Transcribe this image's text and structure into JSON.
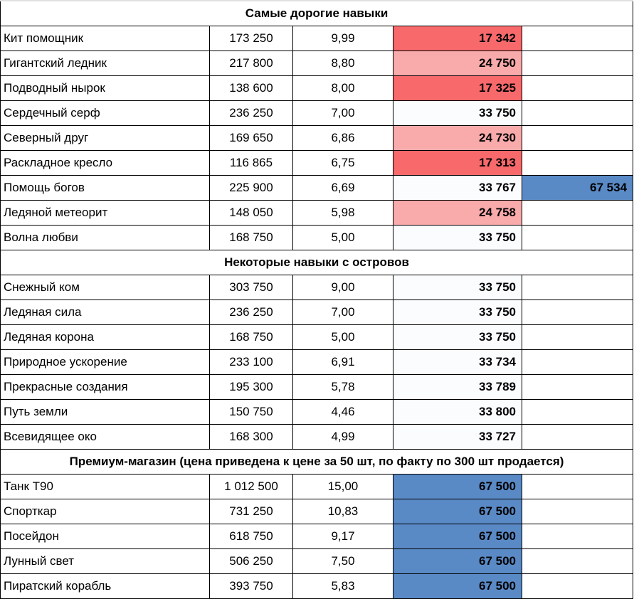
{
  "colors": {
    "low": "#f8696b",
    "mid": "#f9aaab",
    "neutral": "#fbfcfe",
    "high": "#5a8ac6"
  },
  "sections": [
    {
      "title": "Самые дорогие навыки",
      "rows": [
        {
          "name": "Кит помощник",
          "price": "173 250",
          "ratio": "9,99",
          "cost": "17 342",
          "cost_color": "low",
          "extra": ""
        },
        {
          "name": "Гигантский ледник",
          "price": "217 800",
          "ratio": "8,80",
          "cost": "24 750",
          "cost_color": "mid",
          "extra": ""
        },
        {
          "name": "Подводный нырок",
          "price": "138 600",
          "ratio": "8,00",
          "cost": "17 325",
          "cost_color": "low",
          "extra": ""
        },
        {
          "name": "Сердечный серф",
          "price": "236 250",
          "ratio": "7,00",
          "cost": "33 750",
          "cost_color": "neutral",
          "extra": ""
        },
        {
          "name": "Северный друг",
          "price": "169 650",
          "ratio": "6,86",
          "cost": "24 730",
          "cost_color": "mid",
          "extra": ""
        },
        {
          "name": "Раскладное кресло",
          "price": "116 865",
          "ratio": "6,75",
          "cost": "17 313",
          "cost_color": "low",
          "extra": ""
        },
        {
          "name": "Помощь богов",
          "price": "225 900",
          "ratio": "6,69",
          "cost": "33 767",
          "cost_color": "neutral",
          "extra": "67 534"
        },
        {
          "name": "Ледяной метеорит",
          "price": "148 050",
          "ratio": "5,98",
          "cost": "24 758",
          "cost_color": "mid",
          "extra": ""
        },
        {
          "name": "Волна любви",
          "price": "168 750",
          "ratio": "5,00",
          "cost": "33 750",
          "cost_color": "neutral",
          "extra": ""
        }
      ]
    },
    {
      "title": "Некоторые навыки с островов",
      "rows": [
        {
          "name": "Снежный ком",
          "price": "303 750",
          "ratio": "9,00",
          "cost": "33 750",
          "cost_color": "neutral",
          "extra": ""
        },
        {
          "name": "Ледяная сила",
          "price": "236 250",
          "ratio": "7,00",
          "cost": "33 750",
          "cost_color": "neutral",
          "extra": ""
        },
        {
          "name": "Ледяная корона",
          "price": "168 750",
          "ratio": "5,00",
          "cost": "33 750",
          "cost_color": "neutral",
          "extra": ""
        },
        {
          "name": "Природное ускорение",
          "price": "233 100",
          "ratio": "6,91",
          "cost": "33 734",
          "cost_color": "neutral",
          "extra": ""
        },
        {
          "name": "Прекрасные создания",
          "price": "195 300",
          "ratio": "5,78",
          "cost": "33 789",
          "cost_color": "neutral",
          "extra": ""
        },
        {
          "name": "Путь земли",
          "price": "150 750",
          "ratio": "4,46",
          "cost": "33 800",
          "cost_color": "neutral",
          "extra": ""
        },
        {
          "name": "Всевидящее око",
          "price": "168 300",
          "ratio": "4,99",
          "cost": "33 727",
          "cost_color": "neutral",
          "extra": ""
        }
      ]
    },
    {
      "title": "Премиум-магазин (цена приведена к цене за 50 шт, по факту по 300 шт продается)",
      "rows": [
        {
          "name": "Танк Т90",
          "price": "1 012 500",
          "ratio": "15,00",
          "cost": "67 500",
          "cost_color": "high",
          "extra": ""
        },
        {
          "name": "Спорткар",
          "price": "731 250",
          "ratio": "10,83",
          "cost": "67 500",
          "cost_color": "high",
          "extra": ""
        },
        {
          "name": "Посейдон",
          "price": "618 750",
          "ratio": "9,17",
          "cost": "67 500",
          "cost_color": "high",
          "extra": ""
        },
        {
          "name": "Лунный свет",
          "price": "506 250",
          "ratio": "7,50",
          "cost": "67 500",
          "cost_color": "high",
          "extra": ""
        },
        {
          "name": "Пиратский корабль",
          "price": "393 750",
          "ratio": "5,83",
          "cost": "67 500",
          "cost_color": "high",
          "extra": ""
        }
      ]
    }
  ]
}
